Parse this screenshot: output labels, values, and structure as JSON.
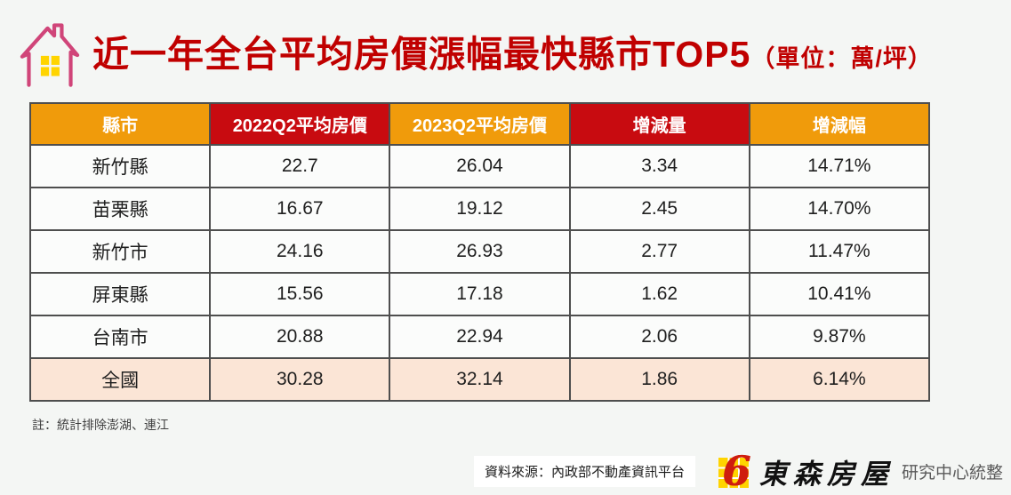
{
  "header": {
    "title": "近一年全台平均房價漲幅最快縣市TOP5",
    "subtitle": "（單位：萬/坪）",
    "title_color": "#c00000"
  },
  "table": {
    "columns": [
      "縣市",
      "2022Q2平均房價",
      "2023Q2平均房價",
      "增減量",
      "增減幅"
    ],
    "header_colors": [
      "#f09b0b",
      "#c80b10",
      "#f09b0b",
      "#c80b10",
      "#f09b0b"
    ],
    "rows": [
      {
        "cells": [
          "新竹縣",
          "22.7",
          "26.04",
          "3.34",
          "14.71%"
        ],
        "highlight": false
      },
      {
        "cells": [
          "苗栗縣",
          "16.67",
          "19.12",
          "2.45",
          "14.70%"
        ],
        "highlight": false
      },
      {
        "cells": [
          "新竹市",
          "24.16",
          "26.93",
          "2.77",
          "11.47%"
        ],
        "highlight": false
      },
      {
        "cells": [
          "屏東縣",
          "15.56",
          "17.18",
          "1.62",
          "10.41%"
        ],
        "highlight": false
      },
      {
        "cells": [
          "台南市",
          "20.88",
          "22.94",
          "2.06",
          "9.87%"
        ],
        "highlight": false
      },
      {
        "cells": [
          "全國",
          "30.28",
          "32.14",
          "1.86",
          "6.14%"
        ],
        "highlight": true
      }
    ],
    "highlight_bg": "#fbe5d6"
  },
  "footer": {
    "note": "註：統計排除澎湖、連江",
    "source": "資料來源：內政部不動產資訊平台",
    "brand": "東森房屋",
    "brand_suffix": "研究中心統整"
  },
  "colors": {
    "page_bg": "#f4f6f4",
    "orange_header": "#f09b0b",
    "red_header": "#c80b10",
    "highlight_row": "#fbe5d6",
    "title_red": "#c00000",
    "house_outline_pink": "#d04579",
    "window_yellow": "#ffd400",
    "logo_red": "#cf1d0e"
  },
  "chart_data": {
    "type": "table",
    "title": "近一年全台平均房價漲幅最快縣市TOP5（單位：萬/坪）",
    "unit": "萬/坪",
    "columns": [
      "縣市",
      "2022Q2平均房價",
      "2023Q2平均房價",
      "增減量",
      "增減幅"
    ],
    "rows": [
      [
        "新竹縣",
        22.7,
        26.04,
        3.34,
        "14.71%"
      ],
      [
        "苗栗縣",
        16.67,
        19.12,
        2.45,
        "14.70%"
      ],
      [
        "新竹市",
        24.16,
        26.93,
        2.77,
        "11.47%"
      ],
      [
        "屏東縣",
        15.56,
        17.18,
        1.62,
        "10.41%"
      ],
      [
        "台南市",
        20.88,
        22.94,
        2.06,
        "9.87%"
      ],
      [
        "全國",
        30.28,
        32.14,
        1.86,
        "6.14%"
      ]
    ],
    "note": "註：統計排除澎湖、連江",
    "source": "資料來源：內政部不動產資訊平台"
  }
}
